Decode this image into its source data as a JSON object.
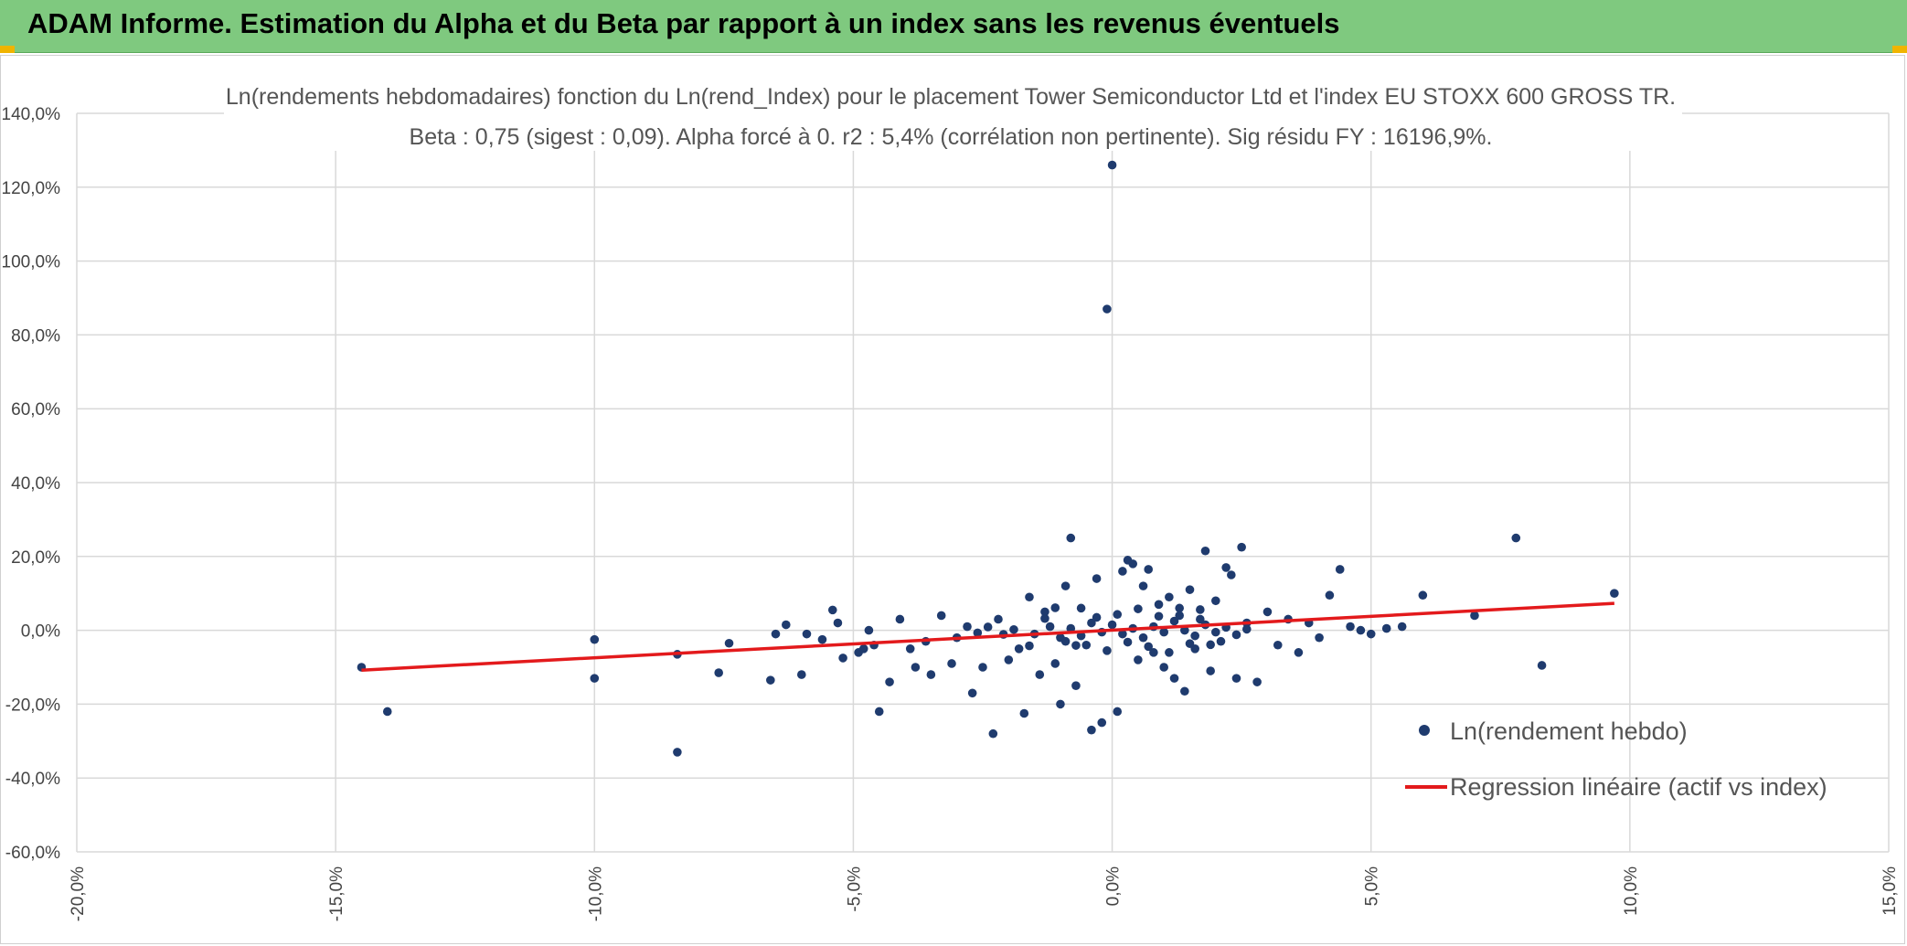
{
  "banner": {
    "title": "ADAM Informe. Estimation du Alpha et du Beta par rapport à un index sans les revenus éventuels",
    "color": "#7fc97f"
  },
  "chart_data": {
    "type": "scatter",
    "title": "Ln(rendements hebdomadaires) fonction du Ln(rend_Index) pour le placement Tower Semiconductor Ltd et l'index EU STOXX 600 GROSS TR.",
    "subtitle": "Beta : 0,75 (sigest : 0,09). Alpha forcé à 0. r2 : 5,4% (corrélation non pertinente). Sig résidu FY : 16196,9%.",
    "xlabel": "",
    "ylabel": "",
    "xlim": [
      -20,
      15
    ],
    "ylim": [
      -60,
      140
    ],
    "x_ticks": [
      -20,
      -15,
      -10,
      -5,
      0,
      5,
      10,
      15
    ],
    "y_ticks": [
      -60,
      -40,
      -20,
      0,
      20,
      40,
      60,
      80,
      100,
      120,
      140
    ],
    "x_tick_labels": [
      "-20,0%",
      "-15,0%",
      "-10,0%",
      "-5,0%",
      "0,0%",
      "5,0%",
      "10,0%",
      "15,0%"
    ],
    "y_tick_labels": [
      "-60,0%",
      "-40,0%",
      "-20,0%",
      "0,0%",
      "20,0%",
      "40,0%",
      "60,0%",
      "80,0%",
      "100,0%",
      "120,0%",
      "140,0%"
    ],
    "grid": true,
    "legend_position": "bottom-right",
    "series": [
      {
        "name": "Ln(rendement hebdo)",
        "kind": "points",
        "color": "#1f3b6e",
        "points": [
          [
            -14.5,
            -10
          ],
          [
            -14,
            -22
          ],
          [
            -10,
            -2.5
          ],
          [
            -10,
            -13
          ],
          [
            -8.4,
            -6.5
          ],
          [
            -8.4,
            -33
          ],
          [
            -7.6,
            -11.5
          ],
          [
            -7.4,
            -3.5
          ],
          [
            -6.6,
            -13.5
          ],
          [
            -6.5,
            -1
          ],
          [
            -6.3,
            1.5
          ],
          [
            -6,
            -12
          ],
          [
            -5.9,
            -1
          ],
          [
            -5.6,
            -2.5
          ],
          [
            -5.4,
            5.5
          ],
          [
            -5.3,
            2
          ],
          [
            -5.2,
            -7.5
          ],
          [
            -4.9,
            -6
          ],
          [
            -4.8,
            -5
          ],
          [
            -4.7,
            0
          ],
          [
            -4.6,
            -4
          ],
          [
            -4.5,
            -22
          ],
          [
            -4.3,
            -14
          ],
          [
            -4.1,
            3
          ],
          [
            -3.9,
            -5
          ],
          [
            -3.8,
            -10
          ],
          [
            -3.6,
            -3
          ],
          [
            -3.5,
            -12
          ],
          [
            -3.3,
            4
          ],
          [
            -3.1,
            -9
          ],
          [
            -3.0,
            -2
          ],
          [
            -2.8,
            1
          ],
          [
            -2.7,
            -17
          ],
          [
            -2.5,
            -10
          ],
          [
            -2.3,
            -28
          ],
          [
            -2.2,
            3
          ],
          [
            -2.0,
            -8
          ],
          [
            -1.8,
            -5
          ],
          [
            -1.7,
            -22.5
          ],
          [
            -1.6,
            9
          ],
          [
            -1.4,
            -12
          ],
          [
            -1.3,
            5
          ],
          [
            -1.1,
            -9
          ],
          [
            -1.0,
            -20
          ],
          [
            -0.9,
            12
          ],
          [
            -0.8,
            25
          ],
          [
            -0.7,
            -15
          ],
          [
            -0.6,
            6
          ],
          [
            -0.5,
            -4
          ],
          [
            -0.4,
            -27
          ],
          [
            -0.3,
            14
          ],
          [
            -0.2,
            -25
          ],
          [
            -0.1,
            87
          ],
          [
            0.0,
            126
          ],
          [
            0.1,
            -22
          ],
          [
            0.2,
            16
          ],
          [
            0.3,
            19
          ],
          [
            0.4,
            18
          ],
          [
            0.5,
            -8
          ],
          [
            0.6,
            12
          ],
          [
            0.7,
            16.5
          ],
          [
            0.8,
            -6
          ],
          [
            0.9,
            7
          ],
          [
            1.0,
            -10
          ],
          [
            1.1,
            9
          ],
          [
            1.2,
            -13
          ],
          [
            1.3,
            6
          ],
          [
            1.4,
            -16.5
          ],
          [
            1.5,
            11
          ],
          [
            1.6,
            -5
          ],
          [
            1.7,
            3
          ],
          [
            1.8,
            21.5
          ],
          [
            1.9,
            -11
          ],
          [
            2.0,
            8
          ],
          [
            2.1,
            -3
          ],
          [
            2.2,
            17
          ],
          [
            2.3,
            15
          ],
          [
            2.4,
            -13
          ],
          [
            2.5,
            22.5
          ],
          [
            2.6,
            2
          ],
          [
            2.8,
            -14
          ],
          [
            3.0,
            5
          ],
          [
            3.2,
            -4
          ],
          [
            3.4,
            3
          ],
          [
            3.6,
            -6
          ],
          [
            3.8,
            2
          ],
          [
            4.0,
            -2
          ],
          [
            4.2,
            9.5
          ],
          [
            4.4,
            16.5
          ],
          [
            4.6,
            1
          ],
          [
            4.8,
            0
          ],
          [
            5.0,
            -1
          ],
          [
            5.3,
            0.5
          ],
          [
            5.6,
            1
          ],
          [
            6.0,
            9.5
          ],
          [
            7.0,
            4
          ],
          [
            7.8,
            25
          ],
          [
            8.3,
            -9.5
          ],
          [
            9.7,
            10
          ],
          [
            -1.5,
            -1
          ],
          [
            -1.2,
            1
          ],
          [
            -1.0,
            -2
          ],
          [
            -0.8,
            0.5
          ],
          [
            -0.6,
            -1.5
          ],
          [
            -0.4,
            2
          ],
          [
            -0.2,
            -0.5
          ],
          [
            0.0,
            1.5
          ],
          [
            0.2,
            -1
          ],
          [
            0.4,
            0.5
          ],
          [
            0.6,
            -2
          ],
          [
            0.8,
            1
          ],
          [
            1.0,
            -0.5
          ],
          [
            1.2,
            2.5
          ],
          [
            1.4,
            0
          ],
          [
            1.6,
            -1.5
          ],
          [
            1.8,
            1.5
          ],
          [
            2.0,
            -0.5
          ],
          [
            2.2,
            0.8
          ],
          [
            2.4,
            -1.2
          ],
          [
            2.6,
            0.3
          ],
          [
            -1.9,
            0.2
          ],
          [
            -2.1,
            -1.1
          ],
          [
            -2.4,
            0.9
          ],
          [
            -2.6,
            -0.7
          ],
          [
            -0.9,
            -3
          ],
          [
            -0.3,
            3.5
          ],
          [
            0.3,
            -3.2
          ],
          [
            0.9,
            3.8
          ],
          [
            1.5,
            -3.6
          ],
          [
            -1.3,
            3.2
          ],
          [
            -0.7,
            -4.1
          ],
          [
            0.1,
            4.3
          ],
          [
            0.7,
            -4.4
          ],
          [
            1.3,
            4.0
          ],
          [
            1.9,
            -3.9
          ],
          [
            -1.6,
            -4.2
          ],
          [
            -0.1,
            -5.5
          ],
          [
            0.5,
            5.8
          ],
          [
            1.1,
            -6.0
          ],
          [
            1.7,
            5.6
          ],
          [
            -1.1,
            6.1
          ]
        ]
      },
      {
        "name": "Regression linéaire (actif vs index)",
        "kind": "line",
        "color": "#e31a1c",
        "points": [
          [
            -14.5,
            -10.8
          ],
          [
            9.7,
            7.3
          ]
        ]
      }
    ]
  }
}
